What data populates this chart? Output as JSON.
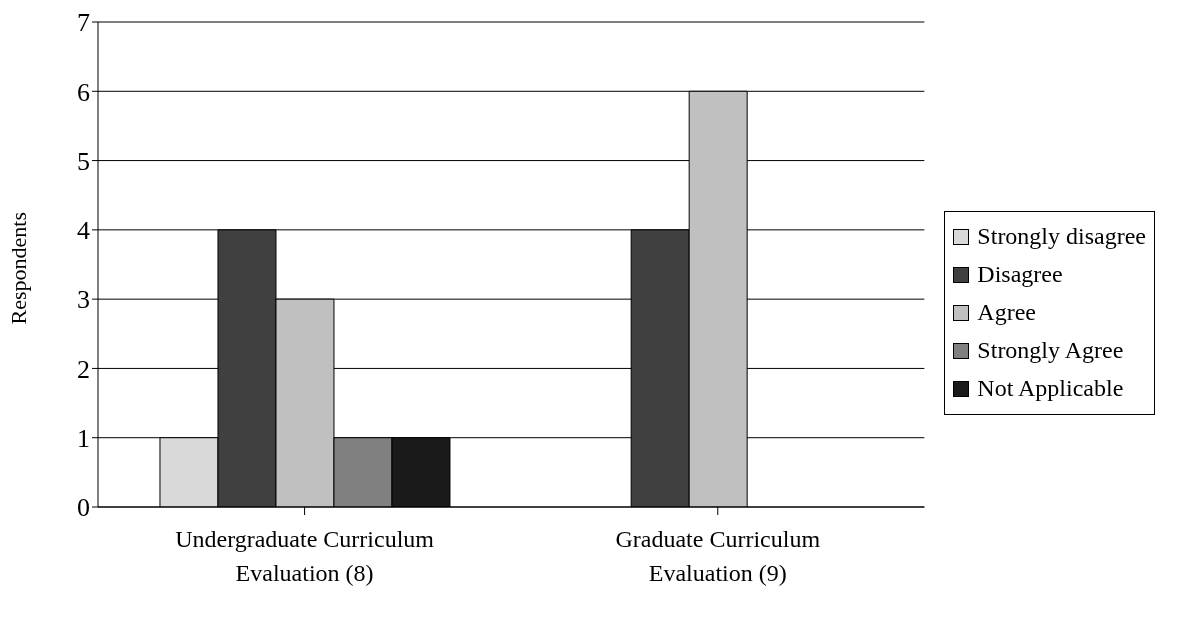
{
  "chart_data": {
    "type": "bar",
    "ylabel": "Respondents",
    "categories": [
      "Undergraduate Curriculum Evaluation (8)",
      "Graduate Curriculum Evaluation (9)"
    ],
    "series": [
      {
        "name": "Strongly disagree",
        "color": "#d9d9d9",
        "values": [
          1,
          0
        ]
      },
      {
        "name": "Disagree",
        "color": "#404040",
        "values": [
          4,
          4
        ]
      },
      {
        "name": "Agree",
        "color": "#c0c0c0",
        "values": [
          3,
          6
        ]
      },
      {
        "name": "Strongly Agree",
        "color": "#808080",
        "values": [
          1,
          0
        ]
      },
      {
        "name": "Not Applicable",
        "color": "#1a1a1a",
        "values": [
          1,
          0
        ]
      }
    ],
    "ylim": [
      0,
      7
    ],
    "yticks": [
      0,
      1,
      2,
      3,
      4,
      5,
      6,
      7
    ],
    "grid": "y",
    "legend": "right"
  }
}
